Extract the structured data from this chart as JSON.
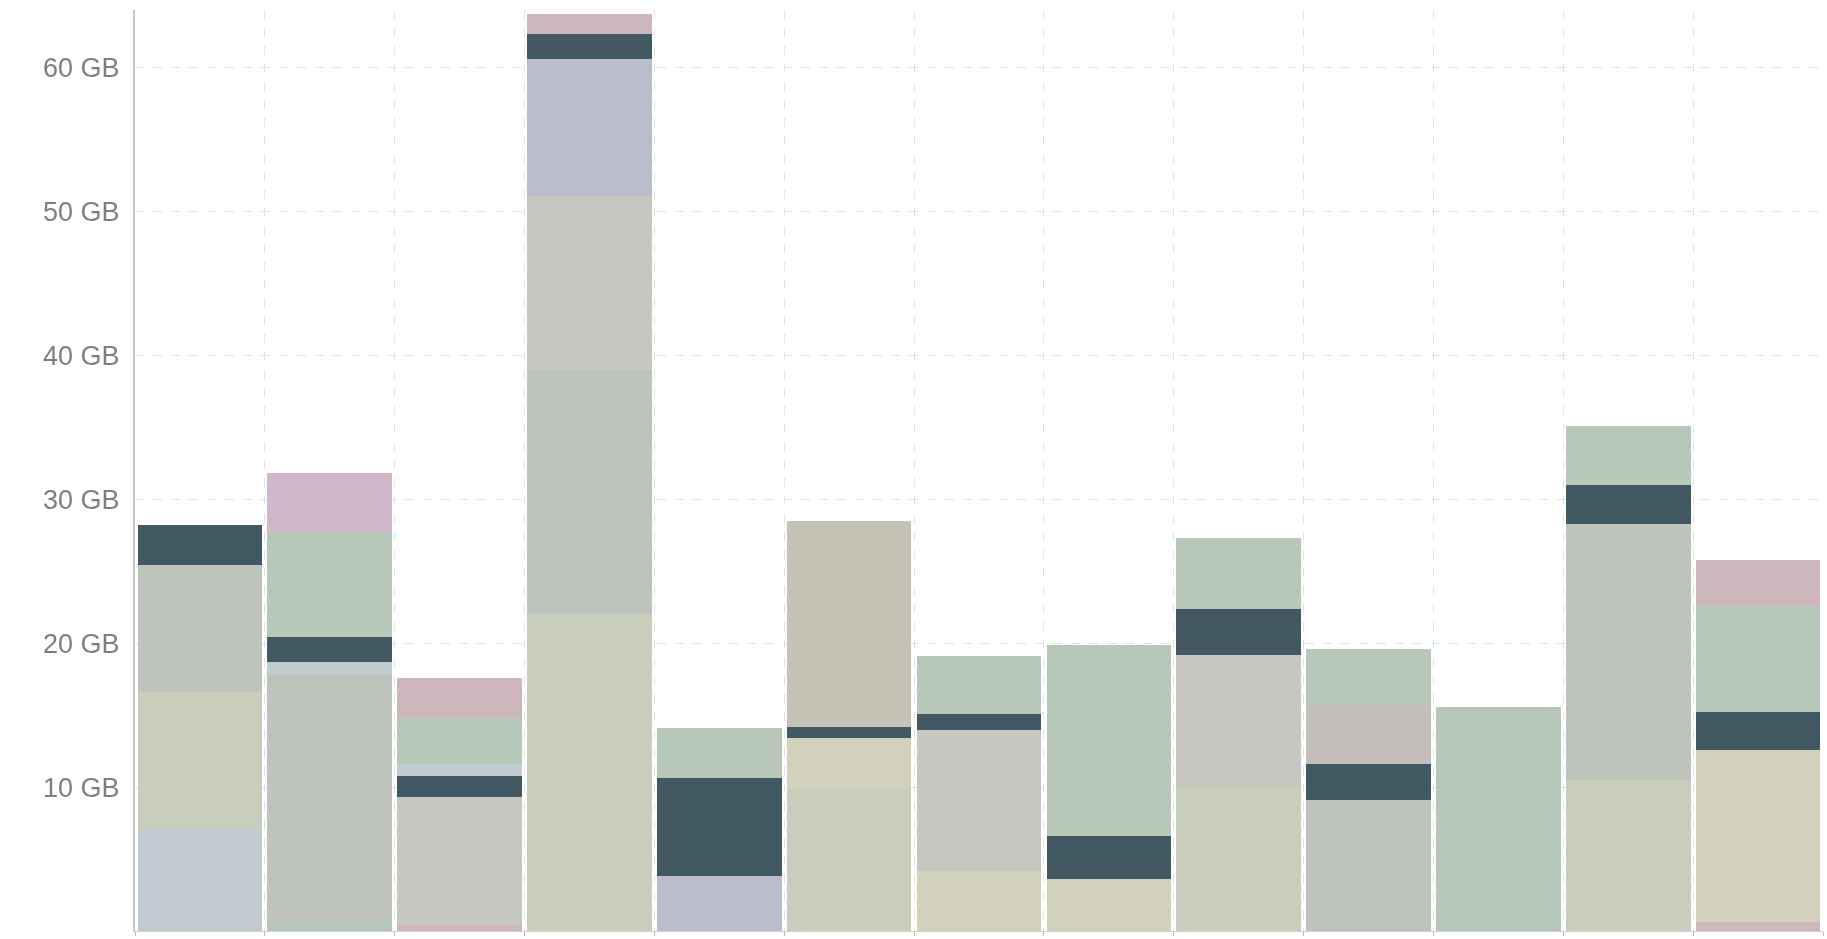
{
  "chart_data": {
    "type": "bar",
    "stacked": true,
    "categories": [
      null,
      null,
      null,
      null,
      null,
      null,
      null,
      null,
      null,
      null,
      null,
      null,
      null
    ],
    "series": [
      {
        "values": [
          7.1,
          0.6,
          0.4,
          22,
          3.8,
          9.9,
          4.2,
          3.6,
          10,
          0.3,
          15.6,
          10.5,
          0.6
        ],
        "colors": [
          "#c0ccd2",
          "#b8c8b8",
          "#cdb7bc",
          "#c9cdbc",
          "#bbbccc",
          "#c9cdbc",
          "#d2d1bc",
          "#d2d1bc",
          "#c9cdbc",
          "#bec3bb",
          "#b8c8b8",
          "#c9cdbc",
          "#cdb7bc"
        ]
      },
      {
        "values": [
          9.5,
          17.2,
          8.3,
          17,
          6.8,
          3.5,
          9.8,
          3,
          9.2,
          8.8,
          null,
          17.8,
          12
        ],
        "colors": [
          "#c9cdbc",
          "#bec3bb",
          "#c7c7c2",
          "#bec3bb",
          "#425863",
          "#d2d1bc",
          "#c7c7c2",
          "#425863",
          "#c7c7c2",
          "#bec3bb",
          null,
          "#bec3bb",
          "#d2d1bc"
        ]
      },
      {
        "values": [
          8.8,
          0.9,
          0.6,
          12.1,
          3.5,
          0.8,
          1.1,
          13.3,
          3.2,
          2.5,
          null,
          2.7,
          2.6
        ],
        "colors": [
          "#bec3bb",
          "#c0ccd2",
          "#c7c7c2",
          "#c7c7c2",
          "#b8c8b8",
          "#425863",
          "#425863",
          "#b8c8b8",
          "#425863",
          "#425863",
          null,
          "#425863",
          "#425863"
        ]
      },
      {
        "values": [
          2.8,
          1.7,
          1.5,
          9.5,
          null,
          14.3,
          4,
          null,
          4.9,
          4.1,
          null,
          4.1,
          7.4
        ],
        "colors": [
          "#425863",
          "#425863",
          "#425863",
          "#bbbccc",
          null,
          "#c5c2b6",
          "#b8c8b8",
          null,
          "#b8c8b8",
          "#c3beba",
          null,
          "#b8c8b8",
          "#b8c8b8"
        ]
      },
      {
        "values": [
          null,
          7.3,
          0.8,
          1.7,
          null,
          null,
          null,
          null,
          null,
          3.9,
          null,
          null,
          3.2
        ],
        "colors": [
          null,
          "#b8c8b8",
          "#c0ccd2",
          "#425863",
          null,
          null,
          null,
          null,
          null,
          "#b8c8b8",
          null,
          null,
          "#cdb7bc"
        ]
      },
      {
        "values": [
          null,
          4.1,
          3.2,
          1.4,
          null,
          null,
          null,
          null,
          null,
          null,
          null,
          null,
          null
        ],
        "colors": [
          null,
          "#cfb8c9",
          "#b8c8b8",
          "#cdb7bc",
          null,
          null,
          null,
          null,
          null,
          null,
          null,
          null,
          null
        ]
      },
      {
        "values": [
          null,
          null,
          2.8,
          null,
          null,
          null,
          null,
          null,
          null,
          null,
          null,
          null,
          null
        ],
        "colors": [
          null,
          null,
          "#cdb7bc",
          null,
          null,
          null,
          null,
          null,
          null,
          null,
          null,
          null,
          null
        ]
      }
    ],
    "ylim": [
      0,
      64
    ],
    "yticks": [
      {
        "value": 0,
        "label": null
      },
      {
        "value": 10,
        "label": "10 GB"
      },
      {
        "value": 20,
        "label": "20 GB"
      },
      {
        "value": 30,
        "label": "30 GB"
      },
      {
        "value": 40,
        "label": "40 GB"
      },
      {
        "value": 50,
        "label": "50 GB"
      },
      {
        "value": 60,
        "label": "60 GB"
      }
    ],
    "grid": true,
    "tick_labels": "y"
  }
}
